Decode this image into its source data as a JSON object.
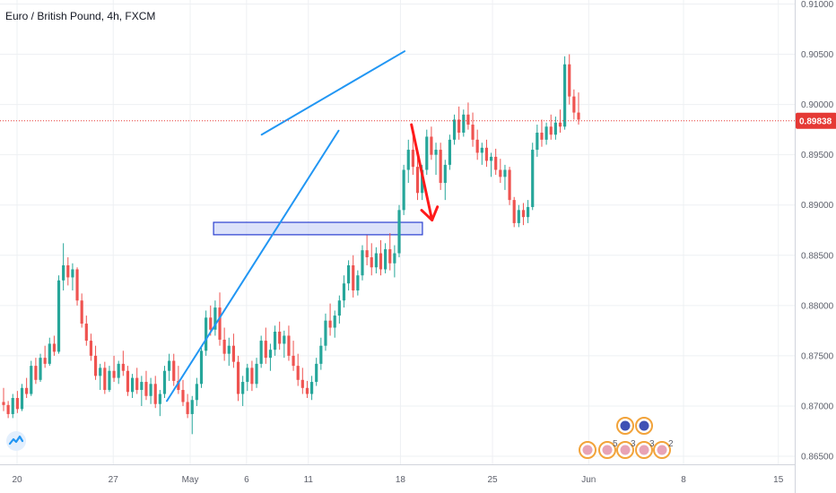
{
  "header": {
    "title": "Euro / British Pound, 4h, FXCM"
  },
  "colors": {
    "up": "#26a69a",
    "down": "#ef5350",
    "trendline": "#2196f3",
    "price_line": "#e53935",
    "arrow": "#ff1a1a",
    "zone_fill": "#c5cff7",
    "zone_stroke": "#2a3fd0",
    "price_label_bg": "#e53935"
  },
  "chart_data": {
    "type": "candlestick",
    "title": "Euro / British Pound, 4h, FXCM",
    "x_ticks": [
      "20",
      "27",
      "May",
      "6",
      "11",
      "18",
      "25",
      "Jun",
      "8",
      "15"
    ],
    "y_ticks": [
      "0.91000",
      "0.90500",
      "0.90000",
      "0.89500",
      "0.89000",
      "0.88500",
      "0.88000",
      "0.87500",
      "0.87000",
      "0.86500"
    ],
    "ylim": [
      0.8642,
      0.9104
    ],
    "current_price": "0.89838",
    "current_price_value": 0.89838,
    "grid": true,
    "annotations": {
      "resistance_line": {
        "x": [
          17.8,
          28.2
        ],
        "y": [
          0.897,
          0.9053
        ]
      },
      "support_line": {
        "x": [
          10.9,
          23.4
        ],
        "y": [
          0.8705,
          0.8974
        ]
      },
      "support_zone": {
        "x": [
          14.3,
          29.5
        ],
        "y": [
          0.8874,
          0.8881
        ]
      },
      "forecast_arrow": {
        "x": [
          28.7,
          30.2
        ],
        "y": [
          0.898,
          0.8885
        ]
      }
    },
    "candles": [
      [
        0.8704,
        0.8718,
        0.8695,
        0.8701
      ],
      [
        0.8701,
        0.8705,
        0.8688,
        0.8692
      ],
      [
        0.8692,
        0.8712,
        0.8688,
        0.8708
      ],
      [
        0.8708,
        0.8715,
        0.8693,
        0.8697
      ],
      [
        0.8697,
        0.8722,
        0.8695,
        0.8718
      ],
      [
        0.8718,
        0.8728,
        0.8708,
        0.8712
      ],
      [
        0.8712,
        0.8745,
        0.871,
        0.874
      ],
      [
        0.874,
        0.8748,
        0.8722,
        0.8726
      ],
      [
        0.8726,
        0.8752,
        0.8724,
        0.8748
      ],
      [
        0.8748,
        0.876,
        0.8738,
        0.8742
      ],
      [
        0.8742,
        0.8768,
        0.874,
        0.8762
      ],
      [
        0.8762,
        0.877,
        0.875,
        0.8754
      ],
      [
        0.8754,
        0.883,
        0.8752,
        0.8825
      ],
      [
        0.8825,
        0.8862,
        0.8815,
        0.884
      ],
      [
        0.884,
        0.8848,
        0.882,
        0.8828
      ],
      [
        0.8828,
        0.8842,
        0.8815,
        0.8836
      ],
      [
        0.8836,
        0.8838,
        0.88,
        0.8805
      ],
      [
        0.8805,
        0.8812,
        0.8778,
        0.8782
      ],
      [
        0.8782,
        0.879,
        0.876,
        0.8765
      ],
      [
        0.8765,
        0.8772,
        0.8745,
        0.875
      ],
      [
        0.875,
        0.876,
        0.8726,
        0.873
      ],
      [
        0.873,
        0.8742,
        0.8716,
        0.8738
      ],
      [
        0.8738,
        0.8744,
        0.8712,
        0.8716
      ],
      [
        0.8716,
        0.874,
        0.8714,
        0.8735
      ],
      [
        0.8735,
        0.875,
        0.8724,
        0.8728
      ],
      [
        0.8728,
        0.8745,
        0.8722,
        0.8742
      ],
      [
        0.8742,
        0.8755,
        0.873,
        0.8735
      ],
      [
        0.8735,
        0.874,
        0.871,
        0.8714
      ],
      [
        0.8714,
        0.8732,
        0.8708,
        0.8728
      ],
      [
        0.8728,
        0.8738,
        0.8712,
        0.8716
      ],
      [
        0.8716,
        0.873,
        0.87,
        0.8724
      ],
      [
        0.8724,
        0.8735,
        0.8706,
        0.871
      ],
      [
        0.871,
        0.8728,
        0.8702,
        0.8722
      ],
      [
        0.8722,
        0.873,
        0.8698,
        0.8702
      ],
      [
        0.8702,
        0.8716,
        0.869,
        0.8712
      ],
      [
        0.8712,
        0.874,
        0.8708,
        0.8735
      ],
      [
        0.8735,
        0.8752,
        0.8725,
        0.8745
      ],
      [
        0.8745,
        0.8752,
        0.872,
        0.8725
      ],
      [
        0.8725,
        0.874,
        0.8712,
        0.8716
      ],
      [
        0.8716,
        0.8726,
        0.87,
        0.8704
      ],
      [
        0.8704,
        0.8712,
        0.8688,
        0.8692
      ],
      [
        0.8692,
        0.871,
        0.8672,
        0.8706
      ],
      [
        0.8706,
        0.8728,
        0.87,
        0.8722
      ],
      [
        0.8722,
        0.876,
        0.8718,
        0.8755
      ],
      [
        0.8755,
        0.8795,
        0.875,
        0.8788
      ],
      [
        0.8788,
        0.88,
        0.877,
        0.8776
      ],
      [
        0.8776,
        0.8805,
        0.877,
        0.8798
      ],
      [
        0.8798,
        0.8813,
        0.876,
        0.8766
      ],
      [
        0.8766,
        0.8778,
        0.8745,
        0.8752
      ],
      [
        0.8752,
        0.8768,
        0.874,
        0.876
      ],
      [
        0.876,
        0.8772,
        0.8738,
        0.8744
      ],
      [
        0.8744,
        0.875,
        0.8705,
        0.8712
      ],
      [
        0.8712,
        0.873,
        0.87,
        0.8724
      ],
      [
        0.8724,
        0.8742,
        0.8715,
        0.8738
      ],
      [
        0.8738,
        0.8745,
        0.8715,
        0.8722
      ],
      [
        0.8722,
        0.8748,
        0.8718,
        0.8742
      ],
      [
        0.8742,
        0.877,
        0.8738,
        0.8765
      ],
      [
        0.8765,
        0.8778,
        0.8742,
        0.8748
      ],
      [
        0.8748,
        0.8762,
        0.8735,
        0.8756
      ],
      [
        0.8756,
        0.878,
        0.875,
        0.8774
      ],
      [
        0.8774,
        0.8784,
        0.8756,
        0.8762
      ],
      [
        0.8762,
        0.8775,
        0.8748,
        0.877
      ],
      [
        0.877,
        0.878,
        0.8745,
        0.875
      ],
      [
        0.875,
        0.8765,
        0.8735,
        0.874
      ],
      [
        0.874,
        0.8752,
        0.872,
        0.8726
      ],
      [
        0.8726,
        0.8738,
        0.8712,
        0.8718
      ],
      [
        0.8718,
        0.8725,
        0.8708,
        0.8712
      ],
      [
        0.8712,
        0.873,
        0.8706,
        0.8724
      ],
      [
        0.8724,
        0.8748,
        0.872,
        0.8742
      ],
      [
        0.8742,
        0.8768,
        0.8736,
        0.876
      ],
      [
        0.876,
        0.8792,
        0.8755,
        0.8785
      ],
      [
        0.8785,
        0.8802,
        0.877,
        0.8778
      ],
      [
        0.8778,
        0.8795,
        0.8768,
        0.879
      ],
      [
        0.879,
        0.881,
        0.8782,
        0.8805
      ],
      [
        0.8805,
        0.883,
        0.8798,
        0.8822
      ],
      [
        0.8822,
        0.8845,
        0.8815,
        0.884
      ],
      [
        0.884,
        0.885,
        0.8808,
        0.8815
      ],
      [
        0.8815,
        0.8835,
        0.881,
        0.883
      ],
      [
        0.883,
        0.886,
        0.8825,
        0.8855
      ],
      [
        0.8855,
        0.887,
        0.884,
        0.8848
      ],
      [
        0.8848,
        0.8862,
        0.883,
        0.8838
      ],
      [
        0.8838,
        0.8858,
        0.8832,
        0.8852
      ],
      [
        0.8852,
        0.8865,
        0.883,
        0.8836
      ],
      [
        0.8836,
        0.8862,
        0.8832,
        0.8856
      ],
      [
        0.8856,
        0.8872,
        0.8835,
        0.8842
      ],
      [
        0.8842,
        0.886,
        0.8828,
        0.8852
      ],
      [
        0.8852,
        0.89,
        0.8848,
        0.8895
      ],
      [
        0.8895,
        0.894,
        0.889,
        0.8935
      ],
      [
        0.8935,
        0.8965,
        0.8922,
        0.8955
      ],
      [
        0.8955,
        0.897,
        0.893,
        0.8938
      ],
      [
        0.8938,
        0.8952,
        0.8905,
        0.8912
      ],
      [
        0.8912,
        0.894,
        0.8905,
        0.8935
      ],
      [
        0.8935,
        0.8975,
        0.893,
        0.8968
      ],
      [
        0.8968,
        0.8978,
        0.8945,
        0.895
      ],
      [
        0.895,
        0.8962,
        0.893,
        0.8955
      ],
      [
        0.8955,
        0.8962,
        0.8915,
        0.8922
      ],
      [
        0.8922,
        0.8945,
        0.8905,
        0.894
      ],
      [
        0.894,
        0.897,
        0.8935,
        0.8965
      ],
      [
        0.8965,
        0.899,
        0.896,
        0.8985
      ],
      [
        0.8985,
        0.8998,
        0.8965,
        0.8972
      ],
      [
        0.8972,
        0.8995,
        0.8968,
        0.899
      ],
      [
        0.899,
        0.9002,
        0.8975,
        0.898
      ],
      [
        0.898,
        0.8992,
        0.8958,
        0.8965
      ],
      [
        0.8965,
        0.8975,
        0.8945,
        0.8952
      ],
      [
        0.8952,
        0.8962,
        0.894,
        0.8957
      ],
      [
        0.8957,
        0.8965,
        0.8938,
        0.8944
      ],
      [
        0.8944,
        0.8952,
        0.8928,
        0.8948
      ],
      [
        0.8948,
        0.8956,
        0.893,
        0.8935
      ],
      [
        0.8935,
        0.8946,
        0.8922,
        0.8928
      ],
      [
        0.8928,
        0.894,
        0.8915,
        0.8935
      ],
      [
        0.8935,
        0.8938,
        0.89,
        0.8905
      ],
      [
        0.8905,
        0.8908,
        0.8878,
        0.8882
      ],
      [
        0.8882,
        0.89,
        0.8878,
        0.8895
      ],
      [
        0.8895,
        0.8902,
        0.888,
        0.8888
      ],
      [
        0.8888,
        0.8905,
        0.8882,
        0.8898
      ],
      [
        0.8898,
        0.8962,
        0.8895,
        0.8955
      ],
      [
        0.8955,
        0.898,
        0.8948,
        0.8972
      ],
      [
        0.8972,
        0.8985,
        0.8958,
        0.8965
      ],
      [
        0.8965,
        0.8982,
        0.896,
        0.8978
      ],
      [
        0.8978,
        0.899,
        0.8965,
        0.897
      ],
      [
        0.897,
        0.8988,
        0.8965,
        0.8982
      ],
      [
        0.8982,
        0.8995,
        0.8972,
        0.8978
      ],
      [
        0.8978,
        0.9048,
        0.8975,
        0.904
      ],
      [
        0.904,
        0.905,
        0.9,
        0.9008
      ],
      [
        0.9008,
        0.9015,
        0.8985,
        0.8992
      ],
      [
        0.8992,
        0.9012,
        0.898,
        0.8985
      ]
    ]
  },
  "bottom_events": [
    {
      "label": "",
      "row": 1
    },
    {
      "label": "5",
      "row": 1
    },
    {
      "label": "",
      "row": 0
    },
    {
      "label": "3",
      "row": 1
    },
    {
      "label": "3",
      "row": 1
    },
    {
      "label": "2",
      "row": 1
    }
  ],
  "logo": {
    "icon": "tradingview-logo-icon"
  }
}
